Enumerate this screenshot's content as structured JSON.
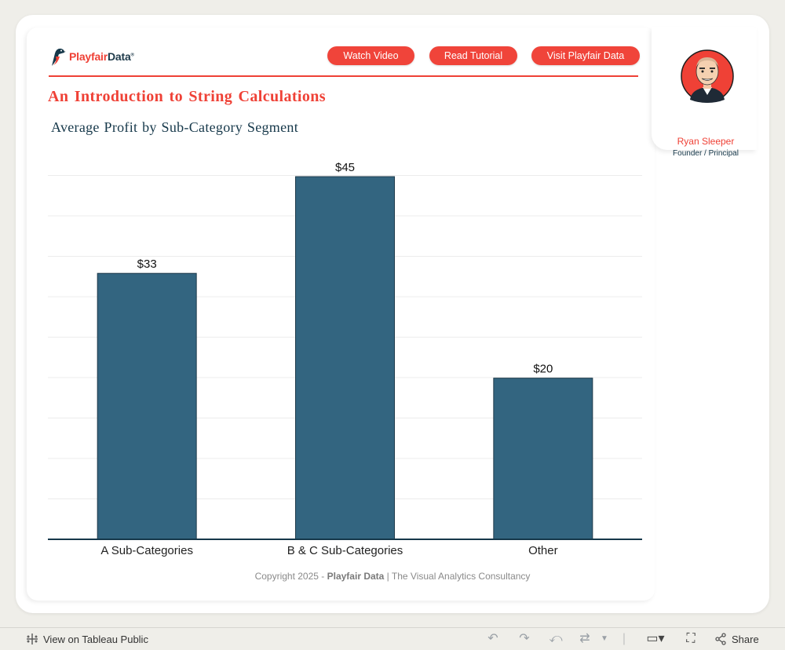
{
  "brand": {
    "logo_text_a": "Playfair",
    "logo_text_b": "Data",
    "logo_reg": "®",
    "accent": "#ef4136",
    "navy": "#16384a"
  },
  "nav": {
    "watch_video": "Watch Video",
    "read_tutorial": "Read Tutorial",
    "visit": "Visit Playfair Data"
  },
  "header": {
    "title": "An Introduction to String Calculations",
    "subtitle": "Average Profit by Sub-Category Segment"
  },
  "profile": {
    "name": "Ryan Sleeper",
    "role": "Founder / Principal"
  },
  "chart_data": {
    "type": "bar",
    "categories": [
      "A Sub-Categories",
      "B & C Sub-Categories",
      "Other"
    ],
    "values": [
      33,
      45,
      20
    ],
    "data_labels": [
      "$33",
      "$45",
      "$20"
    ],
    "title": "Average Profit by Sub-Category Segment",
    "ylim": [
      0,
      45
    ],
    "grid": true,
    "bar_color": "#336580"
  },
  "footer": {
    "prefix": "Copyright 2025 - ",
    "brand": "Playfair Data",
    "suffix": " | The Visual Analytics Consultancy"
  },
  "toolbar": {
    "view_label": "View on Tableau Public",
    "share_label": "Share"
  }
}
